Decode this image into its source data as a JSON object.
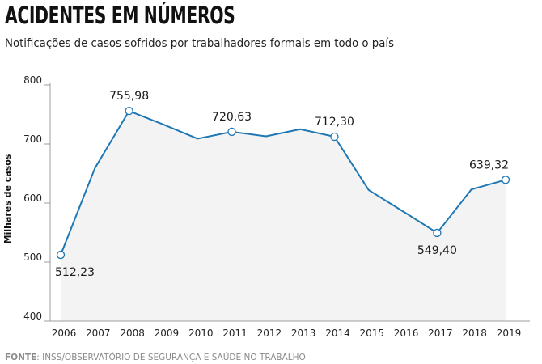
{
  "header": {
    "title": "ACIDENTES EM NÚMEROS",
    "subtitle": "Notificações de casos sofridos por trabalhadores formais em todo o país"
  },
  "source": {
    "label": "FONTE",
    "text": ": INSS/OBSERVATÓRIO DE SEGURANÇA E SAÚDE NO TRABALHO"
  },
  "colors": {
    "line": "#1f78b4",
    "area": "#f3f3f3",
    "axis": "#9e9e9e",
    "marker_fill": "#ffffff"
  },
  "chart_data": {
    "type": "line",
    "ylabel": "Milhares de casos",
    "xlabel": "",
    "ylim": [
      400,
      800
    ],
    "yticks": [
      400,
      500,
      600,
      700,
      800
    ],
    "grid": false,
    "area_fill": true,
    "x": [
      "2006",
      "2007",
      "2008",
      "2009",
      "2010",
      "2011",
      "2012",
      "2013",
      "2014",
      "2015",
      "2016",
      "2017",
      "2018",
      "2019"
    ],
    "series": [
      {
        "values": [
          512.23,
          659,
          755.98,
          733,
          709,
          720.63,
          713,
          725,
          712.3,
          622,
          586,
          549.4,
          623,
          639.32
        ]
      }
    ],
    "annotations": [
      {
        "x": "2006",
        "label": "512,23",
        "position": "below"
      },
      {
        "x": "2008",
        "label": "755,98",
        "position": "above"
      },
      {
        "x": "2011",
        "label": "720,63",
        "position": "above"
      },
      {
        "x": "2014",
        "label": "712,30",
        "position": "above"
      },
      {
        "x": "2017",
        "label": "549,40",
        "position": "below"
      },
      {
        "x": "2019",
        "label": "639,32",
        "position": "above"
      }
    ]
  }
}
